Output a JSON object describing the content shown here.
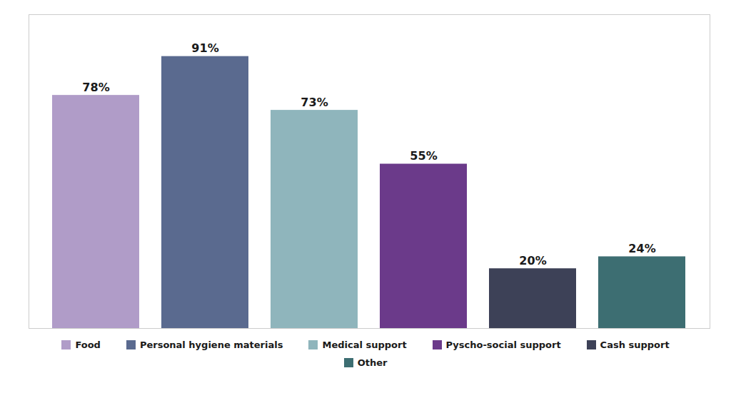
{
  "chart_data": {
    "type": "bar",
    "categories": [
      "Food",
      "Personal hygiene materials",
      "Medical support",
      "Pyscho-social support",
      "Cash support",
      "Other"
    ],
    "values": [
      78,
      91,
      73,
      55,
      20,
      24
    ],
    "value_labels": [
      "78%",
      "91%",
      "73%",
      "55%",
      "20%",
      "24%"
    ],
    "colors": [
      "#b09cc8",
      "#5a6a8f",
      "#8fb5bc",
      "#6b3a8a",
      "#3d4157",
      "#3d6e72"
    ],
    "ylim": [
      0,
      105
    ],
    "yticks": [],
    "tick_labels": false,
    "data_labels": true,
    "grid": false,
    "legend": "bottom"
  }
}
